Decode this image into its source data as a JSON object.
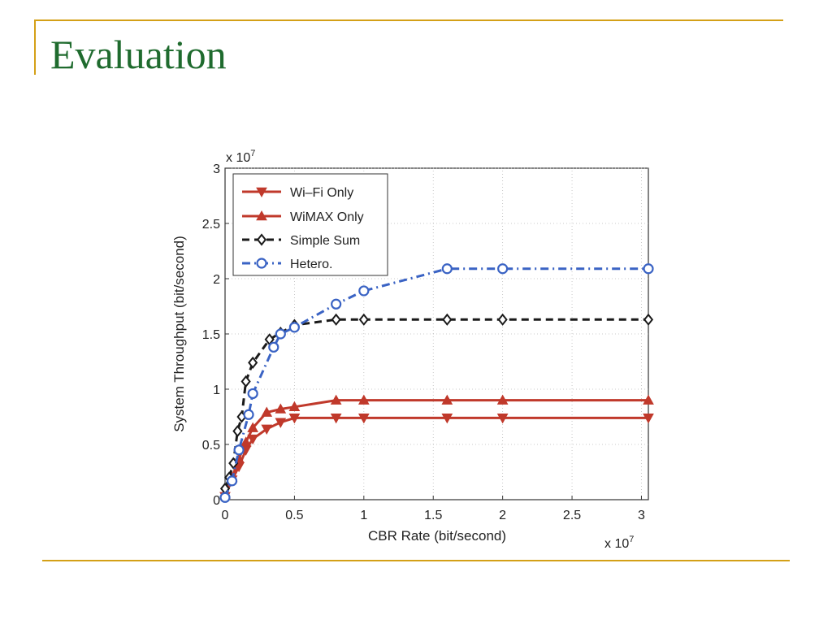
{
  "slide": {
    "title": "Evaluation",
    "accent_color": "#d4a017",
    "title_color": "#1f6b2e"
  },
  "chart_data": {
    "type": "line",
    "title": "",
    "xlabel": "CBR Rate (bit/second)",
    "ylabel": "System Throughput (bit/second)",
    "x_multiplier": "x 10",
    "x_multiplier_exp": "7",
    "y_multiplier": "x 10",
    "y_multiplier_exp": "7",
    "xlim": [
      0,
      3.05
    ],
    "ylim": [
      0,
      3
    ],
    "x_ticks": [
      0,
      0.5,
      1,
      1.5,
      2,
      2.5,
      3
    ],
    "y_ticks": [
      0,
      0.5,
      1,
      1.5,
      2,
      2.5,
      3
    ],
    "x_tick_labels": [
      "0",
      "0.5",
      "1",
      "1.5",
      "2",
      "2.5",
      "3"
    ],
    "y_tick_labels": [
      "0",
      "0.5",
      "1",
      "1.5",
      "2",
      "2.5",
      "3"
    ],
    "grid": true,
    "legend_position": "top-left",
    "series": [
      {
        "name": "Wi–Fi Only",
        "color": "#c0392b",
        "line_style": "solid",
        "marker": "triangle-down",
        "x": [
          0,
          0.05,
          0.1,
          0.15,
          0.2,
          0.3,
          0.4,
          0.5,
          0.8,
          1.0,
          1.6,
          2.0,
          3.05
        ],
        "y": [
          0.03,
          0.18,
          0.3,
          0.45,
          0.55,
          0.64,
          0.7,
          0.74,
          0.74,
          0.74,
          0.74,
          0.74,
          0.74
        ]
      },
      {
        "name": "WiMAX Only",
        "color": "#c0392b",
        "line_style": "solid",
        "marker": "triangle-up",
        "x": [
          0,
          0.05,
          0.1,
          0.15,
          0.2,
          0.3,
          0.4,
          0.5,
          0.8,
          1.0,
          1.6,
          2.0,
          3.05
        ],
        "y": [
          0.05,
          0.2,
          0.37,
          0.52,
          0.65,
          0.79,
          0.82,
          0.84,
          0.9,
          0.9,
          0.9,
          0.9,
          0.9
        ]
      },
      {
        "name": "Simple Sum",
        "color": "#1a1a1a",
        "line_style": "dashed",
        "marker": "diamond",
        "x": [
          0,
          0.03,
          0.06,
          0.09,
          0.12,
          0.15,
          0.2,
          0.32,
          0.4,
          0.5,
          0.8,
          1.0,
          1.6,
          2.0,
          3.05
        ],
        "y": [
          0.1,
          0.2,
          0.33,
          0.62,
          0.75,
          1.07,
          1.24,
          1.45,
          1.51,
          1.58,
          1.63,
          1.63,
          1.63,
          1.63,
          1.63
        ]
      },
      {
        "name": "Hetero.",
        "color": "#3a63c4",
        "line_style": "dashdot",
        "marker": "circle",
        "x": [
          0,
          0.05,
          0.1,
          0.17,
          0.2,
          0.35,
          0.4,
          0.5,
          0.8,
          1.0,
          1.6,
          2.0,
          3.05
        ],
        "y": [
          0.02,
          0.17,
          0.45,
          0.77,
          0.96,
          1.38,
          1.5,
          1.56,
          1.77,
          1.89,
          2.09,
          2.09,
          2.09
        ]
      }
    ]
  }
}
